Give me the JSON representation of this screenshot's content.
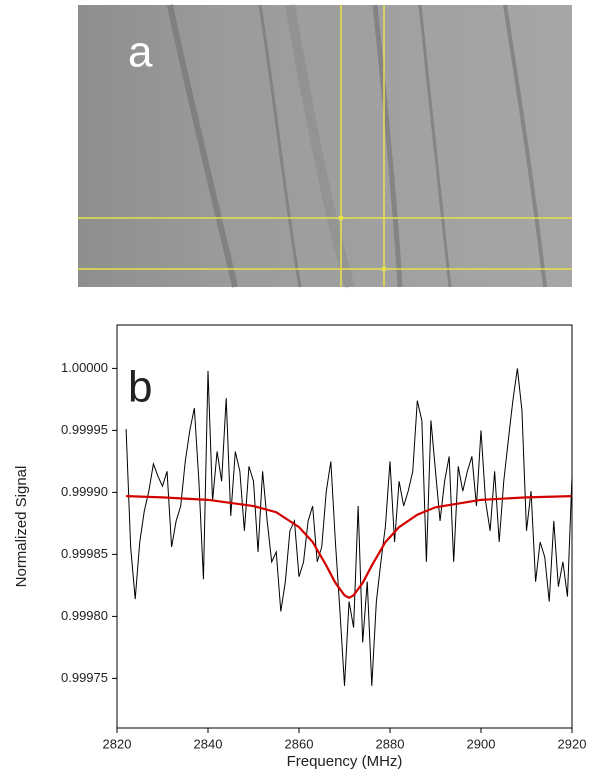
{
  "panel_a": {
    "label": "a"
  },
  "chart_data": {
    "type": "line",
    "panel_label": "b",
    "x_label": "Frequency (MHz)",
    "y_label": "Normalized Signal",
    "xlim": [
      2820,
      2920
    ],
    "xticks": [
      2820,
      2840,
      2860,
      2880,
      2900,
      2920
    ],
    "ylim": [
      0.99971,
      1.000035
    ],
    "yticks": [
      {
        "value": 0.99975,
        "label": "0.99975"
      },
      {
        "value": 0.9998,
        "label": "0.99980"
      },
      {
        "value": 0.99985,
        "label": "0.99985"
      },
      {
        "value": 0.9999,
        "label": "0.99990"
      },
      {
        "value": 0.99995,
        "label": "0.99995"
      },
      {
        "value": 1.0,
        "label": "1.00000"
      }
    ],
    "series": [
      {
        "color": "#000000",
        "x": [
          2822,
          2823,
          2824,
          2825,
          2826,
          2827,
          2828,
          2829,
          2830,
          2831,
          2832,
          2833,
          2834,
          2835,
          2836,
          2837,
          2838,
          2839,
          2840,
          2841,
          2842,
          2843,
          2844,
          2845,
          2846,
          2847,
          2848,
          2849,
          2850,
          2851,
          2852,
          2853,
          2854,
          2855,
          2856,
          2857,
          2858,
          2859,
          2860,
          2861,
          2862,
          2863,
          2864,
          2865,
          2866,
          2867,
          2868,
          2869,
          2870,
          2871,
          2872,
          2873,
          2874,
          2875,
          2876,
          2877,
          2878,
          2879,
          2880,
          2881,
          2882,
          2883,
          2884,
          2885,
          2886,
          2887,
          2888,
          2889,
          2890,
          2891,
          2892,
          2893,
          2894,
          2895,
          2896,
          2897,
          2898,
          2899,
          2900,
          2901,
          2902,
          2903,
          2904,
          2905,
          2906,
          2907,
          2908,
          2909,
          2910,
          2911,
          2912,
          2913,
          2914,
          2915,
          2916,
          2917,
          2918,
          2919,
          2920
        ],
        "values": [
          0.999951,
          0.999856,
          0.999814,
          0.99986,
          0.999885,
          0.999901,
          0.999923,
          0.999913,
          0.999905,
          0.999917,
          0.999856,
          0.999877,
          0.999889,
          0.999925,
          0.99995,
          0.999968,
          0.999909,
          0.99983,
          0.999998,
          0.999893,
          0.999933,
          0.999909,
          0.999976,
          0.999881,
          0.999933,
          0.999917,
          0.999869,
          0.999921,
          0.999909,
          0.999852,
          0.999917,
          0.999877,
          0.999844,
          0.999852,
          0.999804,
          0.999828,
          0.999869,
          0.999877,
          0.999832,
          0.999844,
          0.999877,
          0.999889,
          0.999844,
          0.999856,
          0.999901,
          0.999925,
          0.99986,
          0.999804,
          0.999744,
          0.999812,
          0.999791,
          0.999889,
          0.999779,
          0.999828,
          0.999744,
          0.999812,
          0.999844,
          0.999873,
          0.999925,
          0.99986,
          0.999909,
          0.999889,
          0.999901,
          0.999917,
          0.999974,
          0.999958,
          0.999844,
          0.999958,
          0.999917,
          0.999877,
          0.999909,
          0.999929,
          0.999844,
          0.999921,
          0.999901,
          0.999917,
          0.999929,
          0.999889,
          0.99995,
          0.999893,
          0.999869,
          0.999917,
          0.99986,
          0.999909,
          0.999942,
          0.999974,
          1.0,
          0.999966,
          0.999869,
          0.999901,
          0.999828,
          0.99986,
          0.999848,
          0.999812,
          0.999877,
          0.999824,
          0.999844,
          0.999816,
          0.999913
        ]
      },
      {
        "color": "#d40000",
        "x": [
          2822,
          2830,
          2840,
          2850,
          2855,
          2860,
          2863,
          2866,
          2868,
          2870,
          2871,
          2872,
          2874,
          2876,
          2879,
          2882,
          2886,
          2890,
          2900,
          2910,
          2920
        ],
        "values": [
          0.999897,
          0.999896,
          0.999894,
          0.999889,
          0.999884,
          0.999872,
          0.99986,
          0.999841,
          0.999827,
          0.999817,
          0.999815,
          0.999817,
          0.999827,
          0.999841,
          0.99986,
          0.999872,
          0.999882,
          0.999888,
          0.999894,
          0.999896,
          0.999897
        ]
      }
    ]
  }
}
